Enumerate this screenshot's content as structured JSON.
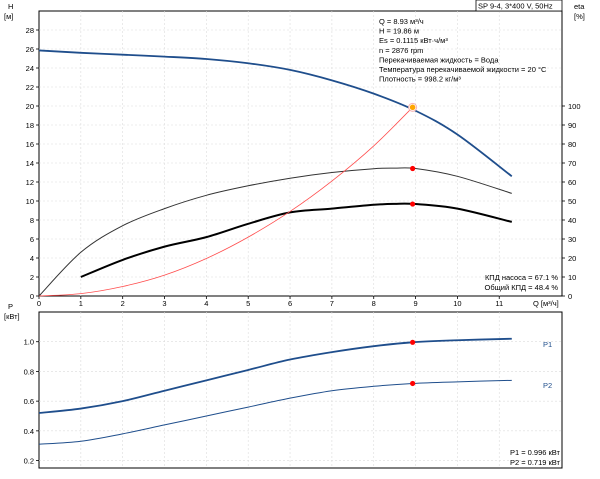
{
  "chart_data": [
    {
      "type": "line",
      "title": "SP 9-4, 3*400 V, 50Hz",
      "ylabel_left": [
        "H",
        "[м]"
      ],
      "ylabel_right": [
        "eta",
        "[%]"
      ],
      "xlabel": "Q [м³/ч]",
      "xlim": [
        0,
        12.5
      ],
      "ylim_left": [
        0,
        30
      ],
      "ylim_right": [
        0,
        150
      ],
      "x_ticks": [
        "0",
        "1",
        "2",
        "3",
        "4",
        "5",
        "6",
        "7",
        "8",
        "9",
        "10",
        "11"
      ],
      "y_ticks_left": [
        "0",
        "2",
        "4",
        "6",
        "8",
        "10",
        "12",
        "14",
        "16",
        "18",
        "20",
        "22",
        "24",
        "26",
        "28"
      ],
      "y_ticks_right": [
        "0",
        "10",
        "20",
        "30",
        "40",
        "50",
        "60",
        "70",
        "80",
        "90",
        "100"
      ],
      "grid": true,
      "info_lines": [
        "Q = 8.93 м³/ч",
        "H = 19.86 м",
        "Es = 0.1115 кВт·ч/м³",
        "n = 2876 rpm",
        "Перекачиваемая жидкость = Вода",
        "Температура перекачиваемой жидкости = 20 °C",
        "Плотность = 998.2 кг/м³"
      ],
      "efficiency_lines": [
        "КПД насоса = 67.1 %",
        "Общий КПД = 48.4 %"
      ],
      "series": [
        {
          "axis": "left",
          "color": "#1f4e8c",
          "x": [
            0,
            1,
            2,
            3,
            4,
            5,
            6,
            7,
            8,
            9,
            10,
            11.3
          ],
          "values": [
            25.85,
            25.6,
            25.4,
            25.2,
            24.95,
            24.5,
            23.8,
            22.7,
            21.3,
            19.5,
            17.0,
            12.6
          ]
        },
        {
          "axis": "right",
          "color": "#333333",
          "x": [
            0,
            1,
            2,
            3,
            4,
            5,
            6,
            7,
            8,
            8.5,
            9,
            10,
            11.3
          ],
          "values": [
            0,
            23,
            37,
            46,
            53,
            58,
            62,
            65,
            67,
            67.3,
            67.1,
            63,
            54
          ]
        },
        {
          "axis": "right",
          "color": "#000000",
          "x": [
            1,
            2,
            3,
            4,
            5,
            6,
            7,
            8,
            8.5,
            9,
            10,
            11.3
          ],
          "values": [
            10,
            19,
            26,
            31,
            38,
            44,
            46,
            48,
            48.5,
            48.4,
            46,
            39
          ]
        },
        {
          "axis": "left",
          "color": "#ff4d4d",
          "x": [
            0,
            1,
            2,
            3,
            4,
            5,
            6,
            7,
            8,
            8.93
          ],
          "values": [
            0,
            0.25,
            1.0,
            2.2,
            3.95,
            6.2,
            8.9,
            12.1,
            15.8,
            19.86
          ]
        }
      ],
      "markers": [
        {
          "axis": "left",
          "x": 8.93,
          "y": 19.86,
          "color": "#ffa500",
          "shape": "ring"
        },
        {
          "axis": "right",
          "x": 8.93,
          "y": 67.1,
          "color": "#ff0000",
          "shape": "dot"
        },
        {
          "axis": "right",
          "x": 8.93,
          "y": 48.4,
          "color": "#ff0000",
          "shape": "dot"
        }
      ]
    },
    {
      "type": "line",
      "ylabel_left": [
        "P",
        "[кВт]"
      ],
      "xlim": [
        0,
        12.5
      ],
      "ylim": [
        0.15,
        1.2
      ],
      "y_ticks": [
        "0.2",
        "0.4",
        "0.6",
        "0.8",
        "1.0"
      ],
      "grid": true,
      "power_lines": [
        "P1 = 0.996 кВт",
        "P2 = 0.719 кВт"
      ],
      "series": [
        {
          "name": "P1",
          "color": "#1f4e8c",
          "x": [
            0,
            1,
            2,
            3,
            4,
            5,
            6,
            7,
            8,
            8.93,
            10,
            11.3
          ],
          "values": [
            0.52,
            0.55,
            0.6,
            0.67,
            0.74,
            0.81,
            0.88,
            0.93,
            0.97,
            0.996,
            1.01,
            1.02
          ]
        },
        {
          "name": "P2",
          "color": "#1f4e8c",
          "x": [
            0,
            1,
            2,
            3,
            4,
            5,
            6,
            7,
            8,
            8.93,
            10,
            11.3
          ],
          "values": [
            0.31,
            0.33,
            0.38,
            0.44,
            0.5,
            0.56,
            0.62,
            0.67,
            0.7,
            0.719,
            0.73,
            0.74
          ]
        }
      ],
      "markers": [
        {
          "x": 8.93,
          "y": 0.996,
          "color": "#ff0000"
        },
        {
          "x": 8.93,
          "y": 0.719,
          "color": "#ff0000"
        }
      ]
    }
  ]
}
